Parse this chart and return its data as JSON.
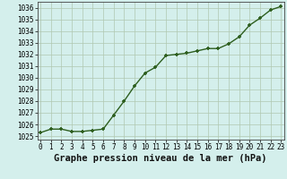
{
  "x": [
    0,
    1,
    2,
    3,
    4,
    5,
    6,
    7,
    8,
    9,
    10,
    11,
    12,
    13,
    14,
    15,
    16,
    17,
    18,
    19,
    20,
    21,
    22,
    23
  ],
  "y": [
    1025.3,
    1025.6,
    1025.6,
    1025.4,
    1025.4,
    1025.5,
    1025.6,
    1026.8,
    1028.0,
    1029.3,
    1030.4,
    1030.9,
    1031.9,
    1032.0,
    1032.1,
    1032.3,
    1032.5,
    1032.5,
    1032.9,
    1033.5,
    1034.5,
    1035.1,
    1035.8,
    1036.1
  ],
  "line_color": "#2d5e1e",
  "marker_color": "#2d5e1e",
  "bg_color": "#d4efec",
  "grid_color": "#b0c8b0",
  "xlabel": "Graphe pression niveau de la mer (hPa)",
  "ylim": [
    1024.7,
    1036.5
  ],
  "xlim": [
    -0.3,
    23.3
  ],
  "yticks": [
    1025,
    1026,
    1027,
    1028,
    1029,
    1030,
    1031,
    1032,
    1033,
    1034,
    1035,
    1036
  ],
  "xticks": [
    0,
    1,
    2,
    3,
    4,
    5,
    6,
    7,
    8,
    9,
    10,
    11,
    12,
    13,
    14,
    15,
    16,
    17,
    18,
    19,
    20,
    21,
    22,
    23
  ],
  "tick_fontsize": 5.5,
  "xlabel_fontsize": 7.5,
  "line_width": 1.0,
  "marker_size": 3.5
}
